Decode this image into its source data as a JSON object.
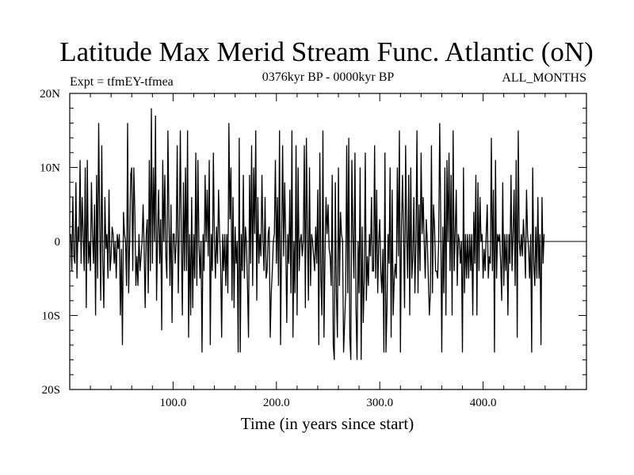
{
  "chart_data": {
    "type": "line",
    "title": "Latitude Max Merid Stream Func. Atlantic (oN)",
    "subtitle_left": "Expt = tfmEY-tfmea",
    "subtitle_center": "0376kyr BP - 0000kyr BP",
    "subtitle_right": "ALL_MONTHS",
    "xlabel": "Time (in years since start)",
    "ylabel": "",
    "xlim": [
      0,
      500
    ],
    "ylim": [
      -20,
      20
    ],
    "x_ticks": [
      {
        "value": 100,
        "label": "100.0"
      },
      {
        "value": 200,
        "label": "200.0"
      },
      {
        "value": 300,
        "label": "300.0"
      },
      {
        "value": 400,
        "label": "400.0"
      }
    ],
    "y_ticks": [
      {
        "value": 20,
        "label": "20N"
      },
      {
        "value": 10,
        "label": "10N"
      },
      {
        "value": 0,
        "label": "0"
      },
      {
        "value": -10,
        "label": "10S"
      },
      {
        "value": -20,
        "label": "20S"
      }
    ],
    "grid": false,
    "line_color": "#000000",
    "series": [
      {
        "x_start": 1,
        "x_step": 1,
        "values": [
          1,
          -4,
          6,
          -2,
          -3,
          8,
          -5,
          2,
          0,
          11,
          -3,
          6,
          1,
          -4,
          10,
          -9,
          11,
          -3,
          0,
          -4,
          8,
          1,
          -3,
          5,
          -10,
          9,
          -5,
          16,
          2,
          -8,
          13,
          -3,
          -9,
          6,
          -1,
          1,
          -5,
          7,
          -4,
          -2,
          2,
          1,
          -3,
          0,
          -5,
          1,
          -1,
          1,
          -10,
          -1,
          -14,
          4,
          1,
          0,
          -6,
          16,
          -7,
          0,
          9,
          10,
          -4,
          10,
          4,
          -6,
          -2,
          -6,
          1,
          -4,
          -2,
          0,
          5,
          -1,
          -9,
          1,
          3,
          -7,
          11,
          -4,
          18,
          -3,
          10,
          0,
          17,
          -8,
          1,
          7,
          -3,
          3,
          -12,
          11,
          0,
          9,
          -2,
          -5,
          15,
          3,
          -6,
          5,
          -11,
          1,
          1,
          -3,
          0,
          13,
          -7,
          1,
          15,
          0,
          -10,
          8,
          -4,
          10,
          -4,
          15,
          -13,
          1,
          -10,
          6,
          -9,
          1,
          -5,
          12,
          -6,
          11,
          0,
          -5,
          0,
          -15,
          1,
          -4,
          9,
          0,
          7,
          -2,
          11,
          -14,
          1,
          -4,
          12,
          0,
          -5,
          2,
          -3,
          7,
          1,
          -3,
          -13,
          1,
          -4,
          1,
          -6,
          1,
          -7,
          16,
          3,
          10,
          -8,
          6,
          -9,
          2,
          -3,
          0,
          -15,
          14,
          -15,
          1,
          -4,
          9,
          -5,
          2,
          0,
          -6,
          -13,
          9,
          -3,
          13,
          -6,
          10,
          1,
          15,
          -8,
          6,
          -3,
          1,
          -2,
          9,
          0,
          -4,
          6,
          -5,
          -4,
          1,
          2,
          -13,
          -7,
          -4,
          0,
          1,
          11,
          -3,
          6,
          -6,
          15,
          -14,
          0,
          13,
          -2,
          8,
          0,
          -11,
          1,
          -3,
          7,
          -7,
          15,
          -13,
          0,
          -7,
          13,
          -10,
          10,
          -4,
          0,
          1,
          -2,
          0,
          13,
          -9,
          14,
          1,
          -8,
          10,
          -6,
          1,
          0,
          -2,
          -4,
          2,
          -3,
          7,
          -14,
          12,
          -5,
          -10,
          15,
          -13,
          -2,
          6,
          1,
          5,
          -1,
          -2,
          -6,
          9,
          -14,
          -16,
          8,
          -7,
          -13,
          10,
          -6,
          4,
          1,
          0,
          -15,
          -11,
          -7,
          13,
          -7,
          14,
          -13,
          -16,
          11,
          1,
          -5,
          12,
          -9,
          -16,
          0,
          -7,
          10,
          -16,
          2,
          -11,
          -5,
          12,
          -8,
          -2,
          -6,
          1,
          -2,
          6,
          -4,
          -4,
          13,
          -5,
          7,
          -7,
          0,
          3,
          -4,
          -7,
          -1,
          -15,
          12,
          -15,
          -9,
          1,
          -3,
          10,
          -13,
          7,
          -10,
          -5,
          -3,
          -5,
          10,
          -2,
          15,
          -15,
          2,
          9,
          1,
          -9,
          13,
          1,
          -5,
          9,
          -10,
          10,
          -5,
          -2,
          6,
          -7,
          0,
          15,
          -7,
          5,
          -4,
          12,
          1,
          6,
          0,
          -5,
          3,
          0,
          -5,
          -10,
          -7,
          13,
          -7,
          5,
          2,
          -4,
          -4,
          -5,
          0,
          16,
          3,
          -15,
          2,
          -7,
          10,
          -10,
          11,
          0,
          12,
          -4,
          9,
          -10,
          15,
          -4,
          1,
          7,
          -6,
          1,
          0,
          -3,
          0,
          -15,
          10,
          -7,
          1,
          -5,
          1,
          -5,
          1,
          -4,
          1,
          -10,
          4,
          -3,
          9,
          -10,
          8,
          -4,
          6,
          0,
          1,
          -5,
          -1,
          -4,
          1,
          5,
          -5,
          -2,
          -3,
          14,
          -4,
          7,
          -15,
          11,
          -5,
          1,
          0,
          1,
          -3,
          -8,
          8,
          -6,
          1,
          -4,
          1,
          -10,
          1,
          -3,
          9,
          -4,
          1,
          7,
          -6,
          11,
          -13,
          15,
          0,
          -2,
          1,
          -2,
          3,
          0,
          -5,
          7,
          1,
          -1,
          -5,
          1,
          -15,
          10,
          -3,
          -6,
          2,
          -5,
          6,
          -5,
          1,
          -14,
          6,
          -3,
          1
        ]
      }
    ]
  }
}
